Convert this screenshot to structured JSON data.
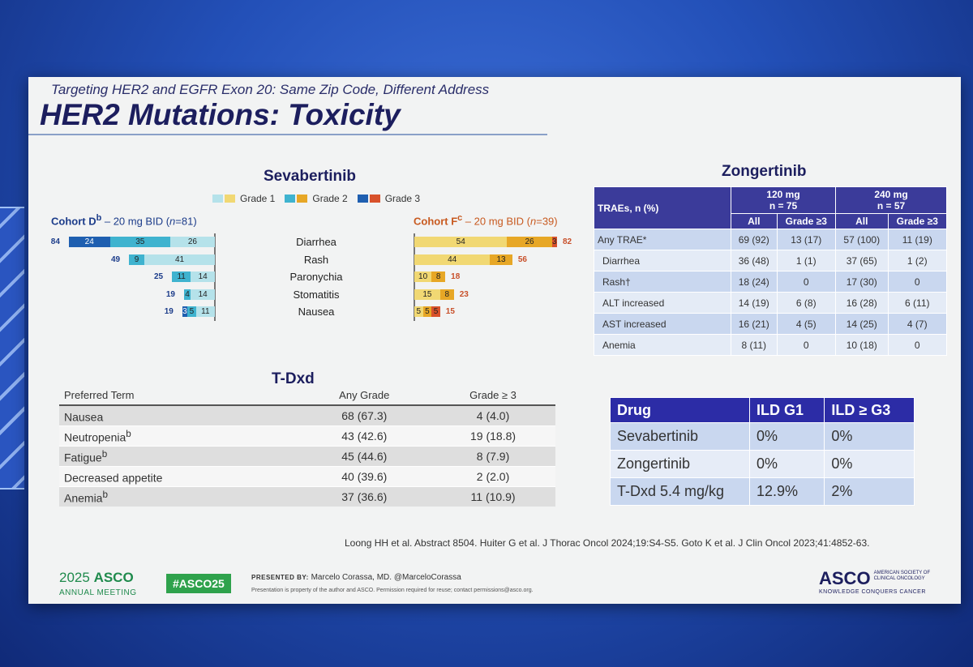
{
  "slide": {
    "subtitle": "Targeting HER2 and EGFR Exon 20: Same Zip Code, Different Address",
    "title": "HER2 Mutations: Toxicity"
  },
  "sevabertinib": {
    "title": "Sevabertinib",
    "legend": [
      "Grade 1",
      "Grade 2",
      "Grade 3"
    ],
    "cohort_d": {
      "label": "Cohort D",
      "sup": "b",
      "rest": " – 20 mg BID (",
      "n": "n",
      "n_val": "=81)"
    },
    "cohort_f": {
      "label": "Cohort F",
      "sup": "c",
      "rest": " – 20 mg BID (",
      "n": "n",
      "n_val": "=39)"
    },
    "terms": [
      "Diarrhea",
      "Rash",
      "Paronychia",
      "Stomatitis",
      "Nausea"
    ]
  },
  "chart_data": {
    "type": "bar",
    "categories": [
      "Diarrhea",
      "Rash",
      "Paronychia",
      "Stomatitis",
      "Nausea"
    ],
    "cohort_d": {
      "totals": [
        84,
        49,
        25,
        19,
        19
      ],
      "series": [
        {
          "name": "Grade 1",
          "values": [
            26,
            41,
            14,
            14,
            11
          ]
        },
        {
          "name": "Grade 2",
          "values": [
            35,
            9,
            11,
            4,
            5
          ]
        },
        {
          "name": "Grade 3",
          "values": [
            24,
            0,
            0,
            0,
            3
          ]
        }
      ]
    },
    "cohort_f": {
      "totals": [
        82,
        56,
        18,
        23,
        15
      ],
      "series": [
        {
          "name": "Grade 1",
          "values": [
            54,
            44,
            10,
            15,
            5
          ]
        },
        {
          "name": "Grade 2",
          "values": [
            26,
            13,
            8,
            8,
            5
          ]
        },
        {
          "name": "Grade 3",
          "values": [
            3,
            0,
            0,
            0,
            5
          ]
        }
      ]
    },
    "colors": {
      "d": [
        "#b5e2ea",
        "#3fb3cf",
        "#1f5fb0"
      ],
      "f": [
        "#f1d873",
        "#e7a726",
        "#d8512b"
      ]
    }
  },
  "zongertinib": {
    "title": "Zongertinib",
    "header_label": "TRAEs, n (%)",
    "group1_dose": "120 mg",
    "group1_n": "n = 75",
    "group2_dose": "240 mg",
    "group2_n": "n = 57",
    "sub_all": "All",
    "sub_g3": "Grade ≥3",
    "rows": [
      {
        "term": "Any TRAE*",
        "c": [
          "69 (92)",
          "13 (17)",
          "57 (100)",
          "11 (19)"
        ]
      },
      {
        "term": "Diarrhea",
        "c": [
          "36 (48)",
          "1 (1)",
          "37 (65)",
          "1 (2)"
        ]
      },
      {
        "term": "Rash†",
        "c": [
          "18 (24)",
          "0",
          "17 (30)",
          "0"
        ]
      },
      {
        "term": "ALT increased",
        "c": [
          "14 (19)",
          "6 (8)",
          "16 (28)",
          "6 (11)"
        ]
      },
      {
        "term": "AST increased",
        "c": [
          "16 (21)",
          "4 (5)",
          "14 (25)",
          "4 (7)"
        ]
      },
      {
        "term": "Anemia",
        "c": [
          "8 (11)",
          "0",
          "10 (18)",
          "0"
        ]
      }
    ]
  },
  "tdxd": {
    "title": "T-Dxd",
    "headers": [
      "Preferred Term",
      "Any Grade",
      "Grade ≥ 3"
    ],
    "rows": [
      {
        "term": "Nausea",
        "sup": "",
        "any": "68 (67.3)",
        "g3": "4 (4.0)"
      },
      {
        "term": "Neutropenia",
        "sup": "b",
        "any": "43 (42.6)",
        "g3": "19 (18.8)"
      },
      {
        "term": "Fatigue",
        "sup": "b",
        "any": "45 (44.6)",
        "g3": "8 (7.9)"
      },
      {
        "term": "Decreased appetite",
        "sup": "",
        "any": "40 (39.6)",
        "g3": "2 (2.0)"
      },
      {
        "term": "Anemia",
        "sup": "b",
        "any": "37 (36.6)",
        "g3": "11 (10.9)"
      }
    ]
  },
  "ild": {
    "headers": [
      "Drug",
      "ILD G1",
      "ILD ≥ G3"
    ],
    "rows": [
      [
        "Sevabertinib",
        "0%",
        "0%"
      ],
      [
        "Zongertinib",
        "0%",
        "0%"
      ],
      [
        "T-Dxd 5.4 mg/kg",
        "12.9%",
        "2%"
      ]
    ]
  },
  "references": "Loong HH et al. Abstract 8504. Huiter G et al. J Thorac Oncol 2024;19:S4-S5. Goto K et al. J Clin Oncol 2023;41:4852-63.",
  "footer": {
    "year": "2025",
    "asco": "ASCO",
    "annual": "ANNUAL MEETING",
    "hashtag": "#ASCO25",
    "presented_by": "PRESENTED BY:",
    "presenter": "Marcelo Corassa, MD. @MarceloCorassa",
    "permission": "Presentation is property of the author and ASCO. Permission required for reuse; contact permissions@asco.org.",
    "asco_right": "ASCO",
    "society": "AMERICAN SOCIETY OF CLINICAL ONCOLOGY",
    "tagline": "KNOWLEDGE CONQUERS CANCER"
  }
}
